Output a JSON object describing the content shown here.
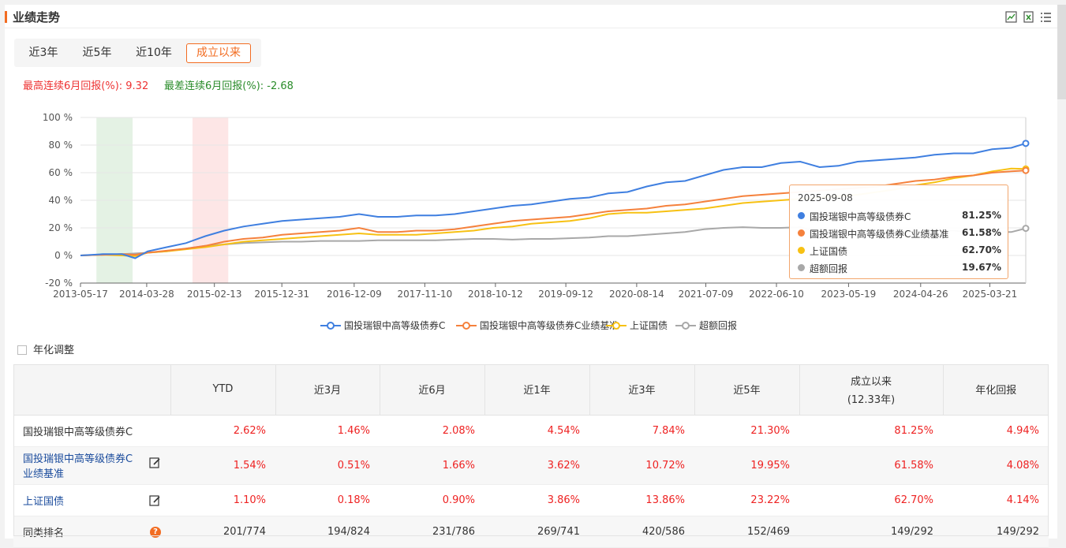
{
  "header": {
    "title": "业绩走势",
    "icons": [
      "chart-export-icon",
      "excel-export-icon",
      "list-menu-icon"
    ]
  },
  "tabs": [
    {
      "label": "近3年",
      "active": false
    },
    {
      "label": "近5年",
      "active": false
    },
    {
      "label": "近10年",
      "active": false
    },
    {
      "label": "成立以来",
      "active": true
    }
  ],
  "stats": {
    "best": "最高连续6月回报(%): 9.32",
    "worst": "最差连续6月回报(%): -2.68"
  },
  "tooltip": {
    "date": "2025-09-08",
    "rows": [
      {
        "name": "国投瑞银中高等级债券C",
        "value": "81.25%",
        "color": "#3f7fe0"
      },
      {
        "name": "国投瑞银中高等级债券C业绩基准",
        "value": "61.58%",
        "color": "#f5813c"
      },
      {
        "name": "上证国债",
        "value": "62.70%",
        "color": "#f7c113"
      },
      {
        "name": "超额回报",
        "value": "19.67%",
        "color": "#a8a8a8"
      }
    ]
  },
  "annualize_label": "年化调整",
  "chart_data": {
    "type": "line",
    "x_ticks": [
      "2013-05-17",
      "2014-03-28",
      "2015-02-13",
      "2015-12-31",
      "2016-12-09",
      "2017-11-10",
      "2018-10-12",
      "2019-09-12",
      "2020-08-14",
      "2021-07-09",
      "2022-06-10",
      "2023-05-19",
      "2024-04-26",
      "2025-03-21"
    ],
    "y_ticks": [
      "-20 %",
      "0 %",
      "20 %",
      "40 %",
      "60 %",
      "80 %",
      "100 %"
    ],
    "ylim": [
      -20,
      100
    ],
    "x_range": [
      "2013-05-17",
      "2025-09-08"
    ],
    "shaded_periods": [
      {
        "start": "2013-08-01",
        "end": "2014-01-20",
        "color": "#e4f2e4"
      },
      {
        "start": "2014-11-01",
        "end": "2015-04-20",
        "color": "#fde6e6"
      }
    ],
    "series": [
      {
        "name": "国投瑞银中高等级债券C",
        "color": "#3f7fe0",
        "x": [
          "2013-05-17",
          "2013-09-01",
          "2013-12-01",
          "2014-02-01",
          "2014-04-01",
          "2014-07-01",
          "2014-10-01",
          "2015-01-01",
          "2015-04-01",
          "2015-07-01",
          "2015-10-01",
          "2016-01-01",
          "2016-04-01",
          "2016-07-01",
          "2016-10-01",
          "2017-01-01",
          "2017-04-01",
          "2017-07-01",
          "2017-10-01",
          "2018-01-01",
          "2018-04-01",
          "2018-07-01",
          "2018-10-01",
          "2019-01-01",
          "2019-04-01",
          "2019-07-01",
          "2019-10-01",
          "2020-01-01",
          "2020-04-01",
          "2020-07-01",
          "2020-10-01",
          "2021-01-01",
          "2021-04-01",
          "2021-07-01",
          "2021-10-01",
          "2022-01-01",
          "2022-04-01",
          "2022-07-01",
          "2022-10-01",
          "2023-01-01",
          "2023-04-01",
          "2023-07-01",
          "2023-10-01",
          "2024-01-01",
          "2024-04-01",
          "2024-07-01",
          "2024-10-01",
          "2025-01-01",
          "2025-04-01",
          "2025-07-01",
          "2025-09-08"
        ],
        "values": [
          0,
          1,
          1,
          -2,
          3,
          6,
          9,
          14,
          18,
          21,
          23,
          25,
          26,
          27,
          28,
          30,
          28,
          28,
          29,
          29,
          30,
          32,
          34,
          36,
          37,
          39,
          41,
          42,
          45,
          46,
          50,
          53,
          54,
          58,
          62,
          64,
          64,
          67,
          68,
          64,
          65,
          68,
          69,
          70,
          71,
          73,
          74,
          74,
          77,
          78,
          81.25
        ]
      },
      {
        "name": "国投瑞银中高等级债券C业绩基准",
        "color": "#f5813c",
        "x": [
          "2013-05-17",
          "2013-09-01",
          "2013-12-01",
          "2014-02-01",
          "2014-04-01",
          "2014-07-01",
          "2014-10-01",
          "2015-01-01",
          "2015-04-01",
          "2015-07-01",
          "2015-10-01",
          "2016-01-01",
          "2016-04-01",
          "2016-07-01",
          "2016-10-01",
          "2017-01-01",
          "2017-04-01",
          "2017-07-01",
          "2017-10-01",
          "2018-01-01",
          "2018-04-01",
          "2018-07-01",
          "2018-10-01",
          "2019-01-01",
          "2019-04-01",
          "2019-07-01",
          "2019-10-01",
          "2020-01-01",
          "2020-04-01",
          "2020-07-01",
          "2020-10-01",
          "2021-01-01",
          "2021-04-01",
          "2021-07-01",
          "2021-10-01",
          "2022-01-01",
          "2022-04-01",
          "2022-07-01",
          "2022-10-01",
          "2023-01-01",
          "2023-04-01",
          "2023-07-01",
          "2023-10-01",
          "2024-01-01",
          "2024-04-01",
          "2024-07-01",
          "2024-10-01",
          "2025-01-01",
          "2025-04-01",
          "2025-07-01",
          "2025-09-08"
        ],
        "values": [
          0,
          0.5,
          1,
          0.5,
          2,
          3.5,
          5,
          7,
          10,
          12,
          13,
          15,
          16,
          17,
          18,
          20,
          17,
          17,
          18,
          18,
          19,
          21,
          23,
          25,
          26,
          27,
          28,
          30,
          32,
          33,
          34,
          36,
          37,
          39,
          41,
          43,
          44,
          45,
          46,
          47,
          48,
          49,
          50,
          52,
          54,
          55,
          57,
          58,
          60,
          61,
          61.58
        ]
      },
      {
        "name": "上证国债",
        "color": "#f7c113",
        "x": [
          "2013-05-17",
          "2013-09-01",
          "2013-12-01",
          "2014-02-01",
          "2014-04-01",
          "2014-07-01",
          "2014-10-01",
          "2015-01-01",
          "2015-04-01",
          "2015-07-01",
          "2015-10-01",
          "2016-01-01",
          "2016-04-01",
          "2016-07-01",
          "2016-10-01",
          "2017-01-01",
          "2017-04-01",
          "2017-07-01",
          "2017-10-01",
          "2018-01-01",
          "2018-04-01",
          "2018-07-01",
          "2018-10-01",
          "2019-01-01",
          "2019-04-01",
          "2019-07-01",
          "2019-10-01",
          "2020-01-01",
          "2020-04-01",
          "2020-07-01",
          "2020-10-01",
          "2021-01-01",
          "2021-04-01",
          "2021-07-01",
          "2021-10-01",
          "2022-01-01",
          "2022-04-01",
          "2022-07-01",
          "2022-10-01",
          "2023-01-01",
          "2023-04-01",
          "2023-07-01",
          "2023-10-01",
          "2024-01-01",
          "2024-04-01",
          "2024-07-01",
          "2024-10-01",
          "2025-01-01",
          "2025-04-01",
          "2025-07-01",
          "2025-09-08"
        ],
        "values": [
          0,
          0.5,
          0,
          -0.5,
          2,
          3,
          4.5,
          6,
          8,
          10,
          11,
          12,
          13,
          14,
          15,
          16,
          15,
          15,
          15,
          16,
          17,
          18,
          20,
          21,
          23,
          24,
          25,
          27,
          30,
          31,
          31,
          32,
          33,
          34,
          36,
          38,
          39,
          40,
          41,
          42,
          43,
          44,
          46,
          48,
          51,
          53,
          56,
          58,
          61,
          63,
          62.7
        ]
      },
      {
        "name": "超额回报",
        "color": "#a8a8a8",
        "x": [
          "2013-05-17",
          "2013-09-01",
          "2013-12-01",
          "2014-02-01",
          "2014-04-01",
          "2014-07-01",
          "2014-10-01",
          "2015-01-01",
          "2015-04-01",
          "2015-07-01",
          "2015-10-01",
          "2016-01-01",
          "2016-04-01",
          "2016-07-01",
          "2016-10-01",
          "2017-01-01",
          "2017-04-01",
          "2017-07-01",
          "2017-10-01",
          "2018-01-01",
          "2018-04-01",
          "2018-07-01",
          "2018-10-01",
          "2019-01-01",
          "2019-04-01",
          "2019-07-01",
          "2019-10-01",
          "2020-01-01",
          "2020-04-01",
          "2020-07-01",
          "2020-10-01",
          "2021-01-01",
          "2021-04-01",
          "2021-07-01",
          "2021-10-01",
          "2022-01-01",
          "2022-04-01",
          "2022-07-01",
          "2022-10-01",
          "2023-01-01",
          "2023-04-01",
          "2023-07-01",
          "2023-10-01",
          "2024-01-01",
          "2024-04-01",
          "2024-07-01",
          "2024-10-01",
          "2025-01-01",
          "2025-04-01",
          "2025-07-01",
          "2025-09-08"
        ],
        "values": [
          0,
          0.5,
          1,
          1.5,
          2,
          3,
          5,
          7,
          8,
          9,
          9.5,
          10,
          10,
          10.5,
          10.5,
          10.5,
          11,
          11,
          11,
          11,
          11.5,
          12,
          12,
          11.5,
          12,
          12,
          12.5,
          13,
          14,
          14,
          15,
          16,
          17,
          19,
          20,
          20.5,
          20,
          20,
          20.5,
          17,
          17,
          18,
          18,
          18,
          17.5,
          18,
          18,
          17,
          17,
          17,
          19.67
        ]
      }
    ],
    "legend_position": "bottom",
    "grid": true
  },
  "table": {
    "headers": [
      "",
      "YTD",
      "近3月",
      "近6月",
      "近1年",
      "近3年",
      "近5年",
      "成立以来",
      "年化回报"
    ],
    "header_sub": {
      "7": "(12.33年)"
    },
    "rows": [
      {
        "name": "国投瑞银中高等级债券C",
        "link": false,
        "icon": "",
        "cells": [
          "2.62%",
          "1.46%",
          "2.08%",
          "4.54%",
          "7.84%",
          "21.30%",
          "81.25%",
          "4.94%"
        ]
      },
      {
        "name": "国投瑞银中高等级债券C",
        "name2": "业绩基准",
        "link": true,
        "icon": "edit-icon",
        "cells": [
          "1.54%",
          "0.51%",
          "1.66%",
          "3.62%",
          "10.72%",
          "19.95%",
          "61.58%",
          "4.08%"
        ]
      },
      {
        "name": "上证国债",
        "link": true,
        "icon": "edit-icon",
        "cells": [
          "1.10%",
          "0.18%",
          "0.90%",
          "3.86%",
          "13.86%",
          "23.22%",
          "62.70%",
          "4.14%"
        ]
      },
      {
        "name": "同类排名",
        "link": false,
        "icon": "help-icon",
        "cells": [
          "201/774",
          "194/824",
          "231/786",
          "269/741",
          "420/586",
          "152/469",
          "149/292",
          "149/292"
        ]
      }
    ]
  }
}
